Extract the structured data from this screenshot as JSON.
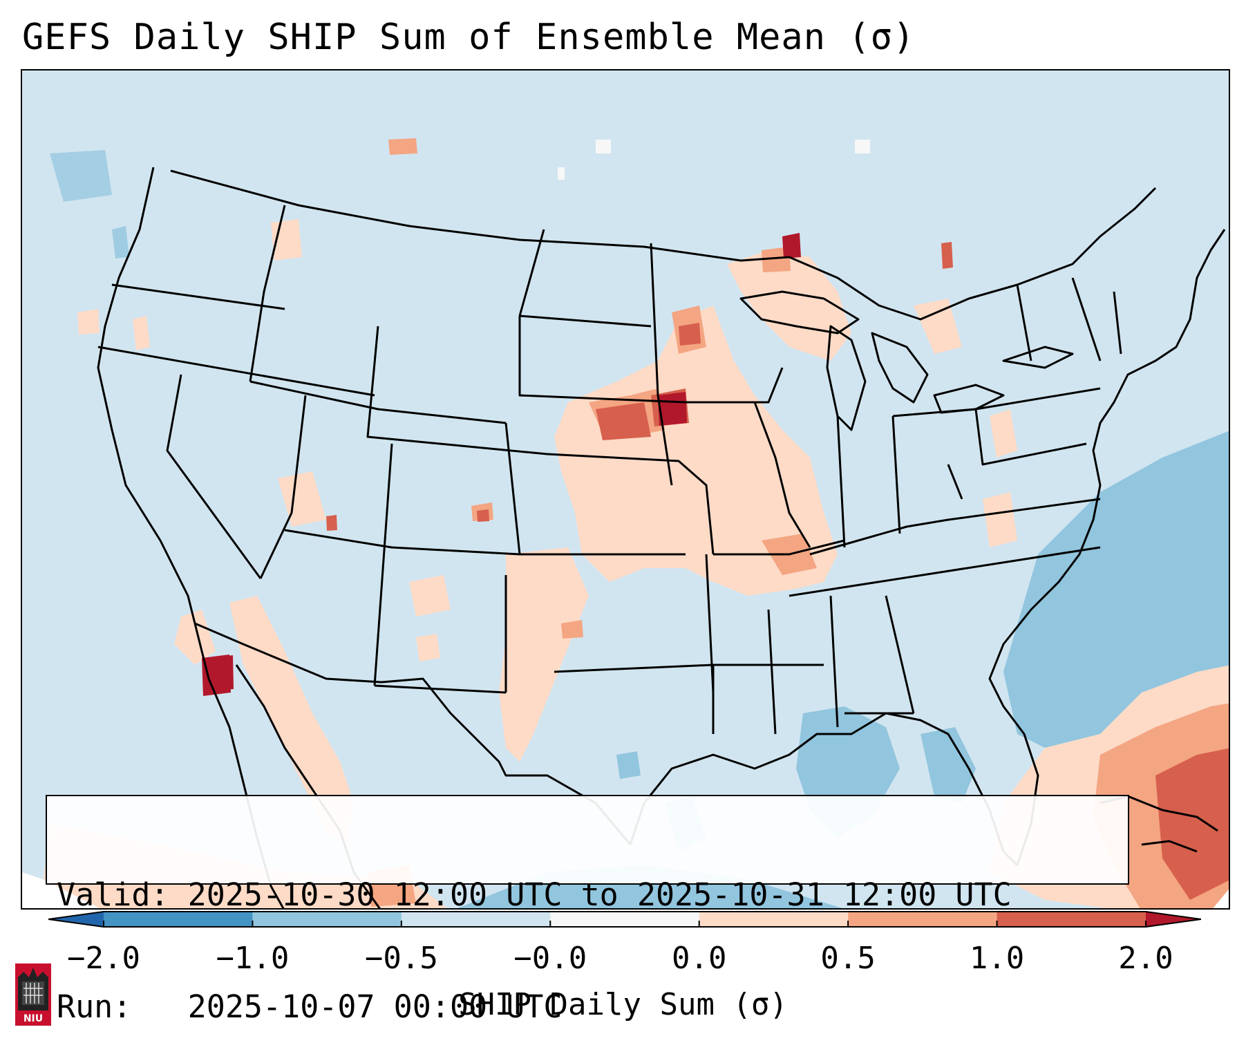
{
  "title": "GEFS Daily SHIP Sum of Ensemble Mean (σ)",
  "info": {
    "valid_line": "Valid: 2025-10-30 12:00 UTC to 2025-10-31 12:00 UTC",
    "run_line": "Run:   2025-10-07 00:00 UTC"
  },
  "colorbar": {
    "label": "SHIP Daily Sum (σ)",
    "ticks": [
      "−2.0",
      "−1.0",
      "−0.5",
      "−0.0",
      "0.0",
      "0.5",
      "1.0",
      "2.0"
    ],
    "bins": [
      {
        "color": "#2166ac"
      },
      {
        "color": "#4393c3"
      },
      {
        "color": "#92c5de"
      },
      {
        "color": "#d1e5f0"
      },
      {
        "color": "#f7f7f7"
      },
      {
        "color": "#fddbc7"
      },
      {
        "color": "#f4a582"
      },
      {
        "color": "#d6604d"
      },
      {
        "color": "#b2182b"
      }
    ],
    "extend": "both"
  },
  "map": {
    "region": "Continental United States",
    "background_color": "#d1e5f0",
    "borders": [
      "coastlines",
      "country borders",
      "state borders"
    ]
  },
  "logo": {
    "text": "NIU",
    "icon": "university-tower-icon",
    "color": "#c8102e"
  }
}
